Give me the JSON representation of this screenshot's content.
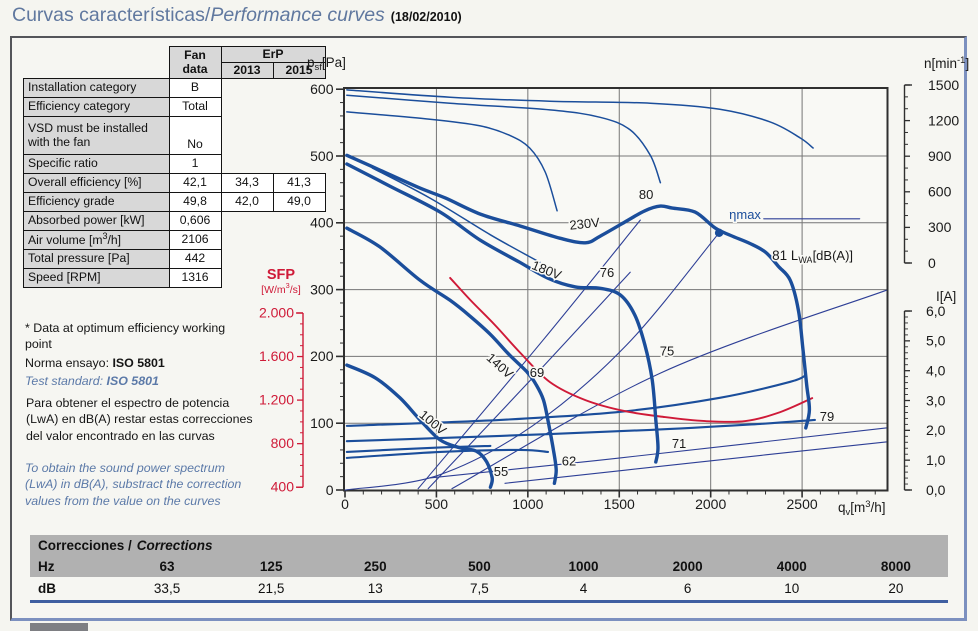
{
  "title": {
    "es": "Curvas características",
    "sep": " / ",
    "en": "Performance curves",
    "date": "(18/02/2010)"
  },
  "fan_table": {
    "header": {
      "fan_line1": "Fan",
      "fan_line2": "data",
      "erp": "ErP",
      "y2013": "2013",
      "y2015": "2015"
    },
    "rows": [
      {
        "label": "Installation category",
        "fan": "B"
      },
      {
        "label": "Efficiency category",
        "fan": "Total"
      },
      {
        "label": "VSD must be installed with the fan",
        "fan": "No",
        "tall": true
      },
      {
        "label": "Specific ratio",
        "fan": "1"
      },
      {
        "label": "Overall efficiency [%]",
        "fan": "42,1",
        "e2013": "34,3",
        "e2015": "41,3"
      },
      {
        "label": "Efficiency grade",
        "fan": "49,8",
        "e2013": "42,0",
        "e2015": "49,0"
      },
      {
        "label": "Absorbed power [kW]",
        "fan": "0,606"
      },
      {
        "label_pre": "Air volume [m",
        "label_sup": "3",
        "label_post": "/h]",
        "fan": "2106"
      },
      {
        "label": "Total pressure [Pa]",
        "fan": "442"
      },
      {
        "label": "Speed [RPM]",
        "fan": "1316"
      }
    ]
  },
  "notes": {
    "asterisk": "* Data at optimum efficiency working point",
    "norma_label": "Norma ensayo: ",
    "norma_value": "ISO 5801",
    "test_label": "Test standard: ",
    "test_value": "ISO 5801",
    "es_paragraph": "Para obtener el espectro de potencia (LwA) en dB(A) restar estas correcciones del valor encontrado en las curvas",
    "en_paragraph": "To obtain the sound power spectrum (LwA) in dB(A), substract the correction values from the value on the curves"
  },
  "chart_data": {
    "type": "line",
    "axes": {
      "x": {
        "min": 0,
        "max": 2965,
        "major": 500,
        "minor": 100,
        "tick_labels": [
          "0",
          "500",
          "1000",
          "1500",
          "2000",
          "2500"
        ],
        "label_parts": [
          [
            "q"
          ],
          [
            "v",
            "sub"
          ],
          [
            "[m"
          ],
          [
            "3",
            "sup"
          ],
          [
            "/h]"
          ]
        ]
      },
      "pressure": {
        "min": 0,
        "max": 600,
        "major": 100,
        "minor": 20,
        "tick_labels": [
          "0",
          "100",
          "200",
          "300",
          "400",
          "500",
          "600"
        ],
        "label_parts": [
          [
            "p"
          ],
          [
            "sf",
            "sub"
          ],
          [
            "[Pa]"
          ]
        ]
      },
      "speed": {
        "min": 0,
        "max": 1500,
        "major": 300,
        "minor": 100,
        "tick_labels": [
          "0",
          "300",
          "600",
          "900",
          "1200",
          "1500"
        ],
        "label_parts": [
          [
            "n"
          ],
          [
            "[min"
          ],
          [
            "-1",
            "sup"
          ],
          [
            "]"
          ]
        ]
      },
      "current": {
        "min": 0,
        "max": 6,
        "major": 1,
        "minor": 0.2,
        "tick_labels": [
          "0,0",
          "1,0",
          "2,0",
          "3,0",
          "4,0",
          "5,0",
          "6,0"
        ],
        "label_parts": [
          [
            "I"
          ],
          [
            "[A]"
          ]
        ]
      },
      "sfp": {
        "min": 400,
        "max": 2000,
        "major": 400,
        "minor": 100,
        "tick_labels": [
          "400",
          "800",
          "1.200",
          "1.600",
          "2.000"
        ],
        "title": "SFP",
        "unit_parts": [
          [
            "[W/m"
          ],
          [
            "3",
            "sup"
          ],
          [
            "/s]"
          ]
        ]
      }
    },
    "colors": {
      "curve_blue": "#1b4e9b",
      "iso_navy": "#2e3f96",
      "sfp_red": "#cf1a38",
      "grid": "#767676",
      "axis": "#2f2f2f",
      "label_navy": "#1b4e9b",
      "text": "#1a1a1a"
    },
    "series": [
      {
        "name": "speed-curve-1",
        "type": "speed",
        "points": [
          [
            10,
            599
          ],
          [
            575,
            588
          ],
          [
            1120,
            582
          ],
          [
            1670,
            579
          ],
          [
            2050,
            570
          ],
          [
            2325,
            551
          ],
          [
            2490,
            527
          ],
          [
            2560,
            512
          ]
        ]
      },
      {
        "name": "speed-curve-2",
        "type": "speed",
        "points": [
          [
            10,
            591
          ],
          [
            575,
            579
          ],
          [
            1120,
            569
          ],
          [
            1395,
            558
          ],
          [
            1560,
            539
          ],
          [
            1670,
            501
          ],
          [
            1725,
            460
          ]
        ]
      },
      {
        "name": "speed-curve-3",
        "type": "speed",
        "points": [
          [
            10,
            566
          ],
          [
            465,
            555
          ],
          [
            740,
            545
          ],
          [
            900,
            531
          ],
          [
            1010,
            512
          ],
          [
            1095,
            476
          ],
          [
            1160,
            418
          ]
        ]
      },
      {
        "name": "speed-curve-4",
        "type": "speed",
        "points": [
          [
            150,
            482
          ],
          [
            465,
            437
          ],
          [
            795,
            382
          ],
          [
            1065,
            341
          ]
        ]
      },
      {
        "name": "iso-line-69",
        "type": "iso",
        "points": [
          [
            455,
            2
          ],
          [
            1030,
            169
          ],
          [
            1560,
            326
          ]
        ]
      },
      {
        "name": "iso-line-76",
        "type": "iso",
        "points": [
          [
            400,
            2
          ],
          [
            1085,
            225
          ],
          [
            1615,
            404
          ]
        ]
      },
      {
        "name": "iso-line-75",
        "type": "iso",
        "points": [
          [
            585,
            2
          ],
          [
            1725,
            175
          ],
          [
            2960,
            299
          ]
        ]
      },
      {
        "name": "iso-line-71",
        "type": "iso",
        "points": [
          [
            465,
            18
          ],
          [
            1505,
            48
          ],
          [
            2960,
            93
          ]
        ]
      },
      {
        "name": "iso-line-55",
        "type": "iso",
        "points": [
          [
            875,
            10
          ],
          [
            1945,
            42
          ],
          [
            2960,
            72
          ]
        ]
      },
      {
        "name": "system-line-eta-max",
        "type": "iso",
        "points": [
          [
            0,
            0
          ],
          [
            510,
            22
          ],
          [
            1025,
            96
          ],
          [
            1540,
            217
          ],
          [
            2046,
            385
          ]
        ]
      },
      {
        "name": "eta-max-leader",
        "type": "leader",
        "points": [
          [
            2290,
            406
          ],
          [
            2815,
            406
          ]
        ]
      },
      {
        "name": "lwa-curve-1",
        "type": "lwa",
        "points": [
          [
            10,
            96
          ],
          [
            850,
            105
          ],
          [
            1505,
            117
          ],
          [
            2050,
            138
          ],
          [
            2435,
            162
          ],
          [
            2520,
            172
          ]
        ]
      },
      {
        "name": "lwa-curve-2",
        "type": "lwa",
        "points": [
          [
            10,
            73
          ],
          [
            850,
            81
          ],
          [
            1670,
            90
          ],
          [
            2270,
            99
          ],
          [
            2570,
            105
          ]
        ]
      },
      {
        "name": "lwa-curve-3",
        "type": "lwa",
        "points": [
          [
            10,
            57
          ],
          [
            465,
            63
          ],
          [
            795,
            66
          ]
        ]
      },
      {
        "name": "lwa-curve-4",
        "type": "lwa",
        "points": [
          [
            10,
            48
          ],
          [
            520,
            57
          ],
          [
            955,
            60
          ],
          [
            1110,
            57
          ]
        ]
      },
      {
        "name": "sfp-curve",
        "type": "sfp",
        "points": [
          [
            575,
            2322
          ],
          [
            685,
            2120
          ],
          [
            820,
            1890
          ],
          [
            955,
            1641
          ],
          [
            1120,
            1366
          ],
          [
            1315,
            1200
          ],
          [
            1530,
            1099
          ],
          [
            1750,
            1044
          ],
          [
            1970,
            1007
          ],
          [
            2190,
            1007
          ],
          [
            2380,
            1090
          ],
          [
            2555,
            1218
          ]
        ]
      },
      {
        "name": "curve-230V",
        "type": "voltage",
        "points": [
          [
            10,
            501
          ],
          [
            190,
            479
          ],
          [
            410,
            452
          ],
          [
            550,
            437
          ],
          [
            740,
            413
          ],
          [
            960,
            395
          ],
          [
            1175,
            377
          ],
          [
            1315,
            370
          ],
          [
            1395,
            380
          ],
          [
            1530,
            401
          ],
          [
            1640,
            418
          ],
          [
            1725,
            425
          ],
          [
            1790,
            422
          ],
          [
            1915,
            416
          ],
          [
            2025,
            392
          ],
          [
            2110,
            381
          ],
          [
            2215,
            369
          ],
          [
            2300,
            356
          ],
          [
            2370,
            335
          ],
          [
            2435,
            314
          ],
          [
            2480,
            269
          ],
          [
            2505,
            210
          ],
          [
            2525,
            157
          ],
          [
            2540,
            120
          ],
          [
            2520,
            93
          ]
        ]
      },
      {
        "name": "curve-180V",
        "type": "voltage",
        "points": [
          [
            10,
            488
          ],
          [
            245,
            455
          ],
          [
            520,
            416
          ],
          [
            740,
            374
          ],
          [
            955,
            341
          ],
          [
            1110,
            317
          ],
          [
            1260,
            304
          ],
          [
            1395,
            302
          ],
          [
            1505,
            292
          ],
          [
            1585,
            262
          ],
          [
            1640,
            217
          ],
          [
            1680,
            165
          ],
          [
            1700,
            105
          ],
          [
            1712,
            63
          ],
          [
            1700,
            42
          ]
        ]
      },
      {
        "name": "curve-140V",
        "type": "voltage",
        "points": [
          [
            10,
            392
          ],
          [
            190,
            364
          ],
          [
            410,
            314
          ],
          [
            575,
            284
          ],
          [
            685,
            260
          ],
          [
            795,
            233
          ],
          [
            900,
            202
          ],
          [
            995,
            177
          ],
          [
            1040,
            160
          ],
          [
            1085,
            135
          ],
          [
            1115,
            97
          ],
          [
            1140,
            60
          ],
          [
            1155,
            30
          ],
          [
            1145,
            10
          ]
        ]
      },
      {
        "name": "curve-100V",
        "type": "voltage",
        "points": [
          [
            10,
            187
          ],
          [
            165,
            168
          ],
          [
            300,
            138
          ],
          [
            410,
            105
          ],
          [
            520,
            75
          ],
          [
            630,
            63
          ],
          [
            720,
            58
          ],
          [
            775,
            42
          ],
          [
            805,
            18
          ],
          [
            795,
            4
          ]
        ]
      }
    ],
    "marker": {
      "name": "eta-max-point",
      "q": 2046,
      "p": 385
    },
    "labels": [
      {
        "text": "80",
        "q": 1647,
        "p": 436
      },
      {
        "text": "230V",
        "q": 1313,
        "p": 392,
        "rotate": -6
      },
      {
        "text": "180V",
        "q": 1094,
        "p": 323,
        "rotate": 22
      },
      {
        "text": "76",
        "q": 1433,
        "p": 319
      },
      {
        "text": "ηmax",
        "q": 2188,
        "p": 406,
        "navy": true
      },
      {
        "text": "75",
        "q": 1761,
        "p": 201
      },
      {
        "text": "79",
        "q": 2636,
        "p": 103
      },
      {
        "text": "71",
        "q": 1827,
        "p": 63
      },
      {
        "text": "69",
        "q": 1050,
        "p": 169
      },
      {
        "text": "62",
        "q": 1225,
        "p": 37
      },
      {
        "text": "55",
        "q": 853,
        "p": 21
      },
      {
        "text": "140V",
        "q": 831,
        "p": 181,
        "rotate": 42
      },
      {
        "text": "100V",
        "q": 465,
        "p": 96,
        "rotate": 40
      },
      {
        "pre": "81 L",
        "sub": "WA",
        "post": "[dB(A)]",
        "q": 2336,
        "p": 344,
        "anchor": "start"
      }
    ]
  },
  "corrections": {
    "title_es": "Correcciones /",
    "title_en": "Corrections",
    "hz_label": "Hz",
    "db_label": "dB",
    "hz": [
      "63",
      "125",
      "250",
      "500",
      "1000",
      "2000",
      "4000",
      "8000"
    ],
    "db": [
      "33,5",
      "21,5",
      "13",
      "7,5",
      "4",
      "6",
      "10",
      "20"
    ]
  }
}
